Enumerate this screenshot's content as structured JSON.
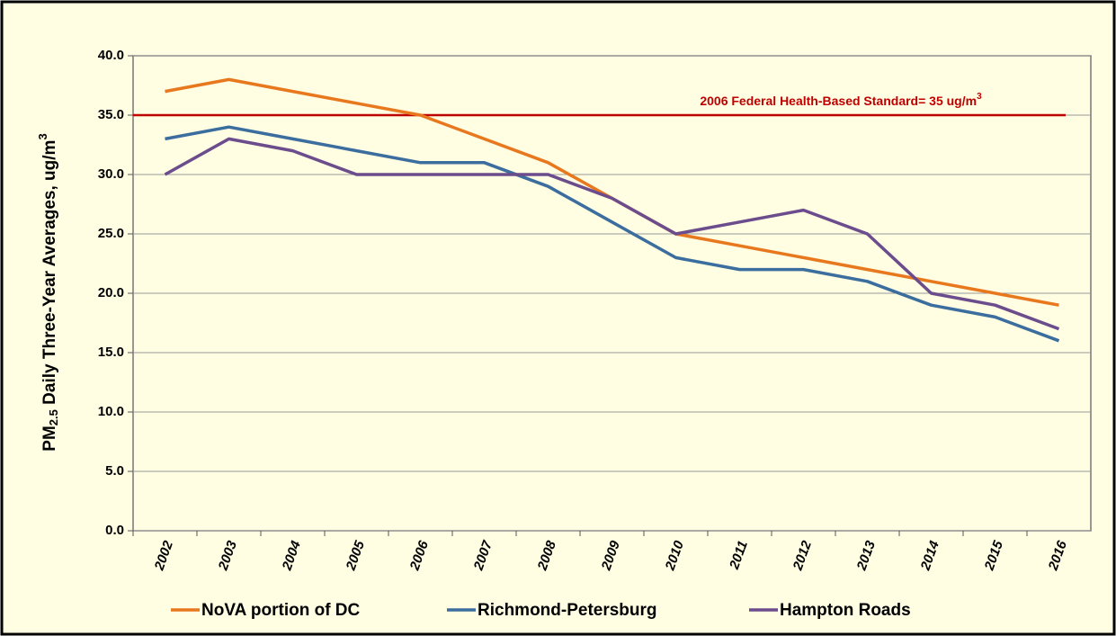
{
  "chart_data": {
    "type": "line",
    "ylabel": {
      "main": "PM",
      "sub": "2.5",
      "rest": " Daily Three-Year Averages, ug/m",
      "sup": "3"
    },
    "categories": [
      "2002",
      "2003",
      "2004",
      "2005",
      "2006",
      "2007",
      "2008",
      "2009",
      "2010",
      "2011",
      "2012",
      "2013",
      "2014",
      "2015",
      "2016"
    ],
    "series": [
      {
        "name": "NoVA portion of DC",
        "color": "#e8781e",
        "values": [
          37,
          38,
          37,
          36,
          35,
          33,
          31,
          28,
          25,
          24,
          23,
          22,
          21,
          20,
          19
        ]
      },
      {
        "name": "Richmond-Petersburg",
        "color": "#3b6e9e",
        "values": [
          33,
          34,
          33,
          32,
          31,
          31,
          29,
          26,
          23,
          22,
          22,
          21,
          19,
          18,
          16
        ]
      },
      {
        "name": "Hampton Roads",
        "color": "#6b4c8c",
        "values": [
          30,
          33,
          32,
          30,
          30,
          30,
          30,
          28,
          25,
          26,
          27,
          25,
          20,
          19,
          17
        ]
      }
    ],
    "reference_line": {
      "value": 35,
      "color": "#c00000",
      "label": "2006 Federal Health-Based Standard= 35 ug/m",
      "label_sup": "3"
    },
    "ylim": [
      0,
      40
    ],
    "yticks": [
      {
        "value": 0,
        "label": "0.0"
      },
      {
        "value": 5,
        "label": "5.0"
      },
      {
        "value": 10,
        "label": "10.0"
      },
      {
        "value": 15,
        "label": "15.0"
      },
      {
        "value": 20,
        "label": "20.0"
      },
      {
        "value": 25,
        "label": "25.0"
      },
      {
        "value": 30,
        "label": "30.0"
      },
      {
        "value": 35,
        "label": "35.0"
      },
      {
        "value": 40,
        "label": "40.0"
      }
    ],
    "grid": true,
    "legend": "bottom"
  }
}
